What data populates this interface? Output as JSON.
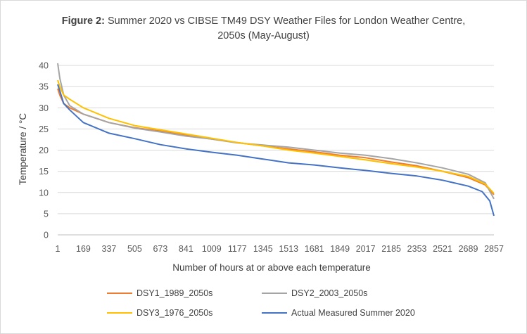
{
  "chart_data": {
    "type": "line",
    "title_bold": "Figure 2:",
    "title_rest_line1": "Summer 2020 vs CIBSE TM49 DSY Weather Files for London Weather Centre,",
    "title_line2": "2050s (May-August)",
    "xlabel": "Number of hours at or above each temperature",
    "ylabel": "Temperature / °C",
    "xlim": [
      1,
      2857
    ],
    "ylim": [
      0,
      40
    ],
    "y_ticks": [
      0,
      5,
      10,
      15,
      20,
      25,
      30,
      35,
      40
    ],
    "x_ticks": [
      "1",
      "169",
      "337",
      "505",
      "673",
      "841",
      "1009",
      "1177",
      "1345",
      "1513",
      "1681",
      "1849",
      "2017",
      "2185",
      "2353",
      "2521",
      "2689",
      "2857"
    ],
    "grid": "horizontal",
    "legend_position": "bottom",
    "series": [
      {
        "name": "DSY1_1989_2050s",
        "color": "#ED7D31",
        "x": [
          1,
          15,
          40,
          80,
          169,
          337,
          505,
          673,
          841,
          1009,
          1177,
          1345,
          1513,
          1681,
          1849,
          2017,
          2185,
          2353,
          2521,
          2689,
          2800,
          2857
        ],
        "y": [
          34.5,
          33.0,
          31.0,
          30.0,
          28.5,
          26.5,
          25.3,
          24.5,
          23.5,
          22.6,
          21.8,
          21.0,
          20.3,
          19.6,
          18.8,
          18.2,
          17.2,
          16.3,
          15.0,
          13.5,
          11.8,
          9.5
        ]
      },
      {
        "name": "DSY2_2003_2050s",
        "color": "#A5A5A5",
        "x": [
          1,
          15,
          40,
          80,
          169,
          337,
          505,
          673,
          841,
          1009,
          1177,
          1345,
          1513,
          1681,
          1849,
          2017,
          2185,
          2353,
          2521,
          2689,
          2800,
          2857
        ],
        "y": [
          40.5,
          37.0,
          33.0,
          30.5,
          28.5,
          26.5,
          25.2,
          24.3,
          23.3,
          22.6,
          21.7,
          21.2,
          20.7,
          20.0,
          19.3,
          18.8,
          18.0,
          17.0,
          15.8,
          14.3,
          12.3,
          8.5
        ]
      },
      {
        "name": "DSY3_1976_2050s",
        "color": "#FFC000",
        "x": [
          1,
          15,
          40,
          80,
          169,
          337,
          505,
          673,
          841,
          1009,
          1177,
          1345,
          1513,
          1681,
          1849,
          2017,
          2185,
          2353,
          2521,
          2689,
          2800,
          2857
        ],
        "y": [
          36.5,
          35.0,
          33.0,
          32.0,
          30.0,
          27.5,
          25.8,
          24.8,
          23.8,
          22.8,
          21.8,
          21.0,
          20.0,
          19.3,
          18.5,
          17.7,
          16.8,
          16.0,
          15.0,
          13.8,
          12.0,
          9.8
        ]
      },
      {
        "name": "Actual Measured Summer 2020",
        "color": "#4472C4",
        "x": [
          1,
          15,
          40,
          80,
          169,
          337,
          505,
          673,
          841,
          1009,
          1177,
          1345,
          1513,
          1681,
          1849,
          2017,
          2185,
          2353,
          2521,
          2689,
          2780,
          2830,
          2857
        ],
        "y": [
          35.5,
          34.0,
          31.0,
          29.5,
          26.5,
          24.0,
          22.7,
          21.3,
          20.3,
          19.5,
          18.8,
          17.9,
          17.0,
          16.5,
          15.8,
          15.2,
          14.5,
          13.9,
          12.9,
          11.5,
          10.2,
          8.0,
          4.5
        ]
      }
    ]
  }
}
